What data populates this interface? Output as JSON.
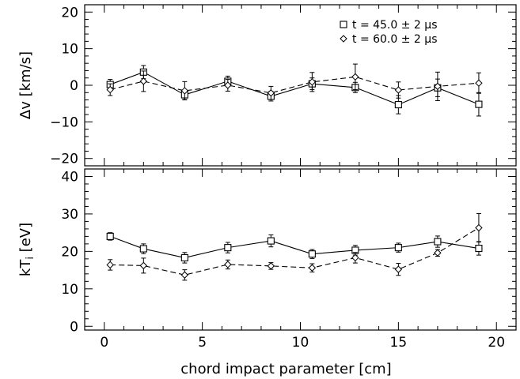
{
  "chart_data": [
    {
      "type": "line",
      "ylabel": "Δv [km/s]",
      "xlabel": "",
      "xlim": [
        -1,
        21
      ],
      "ylim": [
        -22,
        22
      ],
      "xticks": [
        0,
        5,
        10,
        15,
        20
      ],
      "yticks": [
        -20,
        -10,
        0,
        10,
        20
      ],
      "xtick_labels_shown": false,
      "legend": "top-right",
      "grid": false,
      "x": [
        0.3,
        2.0,
        4.1,
        6.3,
        8.5,
        10.6,
        12.8,
        15.0,
        17.0,
        19.1
      ],
      "series": [
        {
          "name": "t = 45.0 ± 2 μs",
          "marker": "square",
          "line": "solid",
          "values": [
            0.2,
            3.6,
            -2.6,
            1.1,
            -3.0,
            0.4,
            -0.6,
            -5.3,
            -0.7,
            -5.2
          ],
          "errors": [
            1.4,
            1.8,
            1.3,
            1.4,
            1.3,
            1.6,
            1.4,
            2.5,
            2.4,
            3.2
          ]
        },
        {
          "name": "t = 60.0 ± 2 μs",
          "marker": "diamond",
          "line": "dashed",
          "values": [
            -1.2,
            1.1,
            -1.5,
            0.0,
            -2.1,
            0.9,
            2.3,
            -1.3,
            -0.3,
            0.6
          ],
          "errors": [
            1.6,
            2.8,
            2.5,
            1.6,
            1.8,
            2.6,
            3.5,
            2.2,
            3.9,
            2.8
          ]
        }
      ]
    },
    {
      "type": "line",
      "ylabel": "kT",
      "ylabel_sub": "i",
      "ylabel_unit": " [eV]",
      "xlabel": "chord impact parameter [cm]",
      "xlim": [
        -1,
        21
      ],
      "ylim": [
        -1,
        42
      ],
      "xticks": [
        0,
        5,
        10,
        15,
        20
      ],
      "yticks": [
        0,
        10,
        20,
        30,
        40
      ],
      "xtick_labels_shown": true,
      "grid": false,
      "x": [
        0.3,
        2.0,
        4.1,
        6.3,
        8.5,
        10.6,
        12.8,
        15.0,
        17.0,
        19.1
      ],
      "series": [
        {
          "name": "t = 45.0 ± 2 μs",
          "marker": "square",
          "line": "solid",
          "values": [
            24.0,
            20.7,
            18.3,
            21.0,
            22.8,
            19.3,
            20.3,
            21.0,
            22.6,
            20.8
          ],
          "errors": [
            1.0,
            1.3,
            1.4,
            1.4,
            1.6,
            1.2,
            1.3,
            1.2,
            1.5,
            1.8
          ]
        },
        {
          "name": "t = 60.0 ± 2 μs",
          "marker": "diamond",
          "line": "dashed",
          "values": [
            16.4,
            16.2,
            13.7,
            16.5,
            16.1,
            15.6,
            18.3,
            15.2,
            19.6,
            26.3
          ],
          "errors": [
            1.4,
            2.0,
            1.4,
            1.2,
            0.9,
            1.1,
            1.4,
            1.6,
            0.9,
            3.8
          ]
        }
      ]
    }
  ]
}
